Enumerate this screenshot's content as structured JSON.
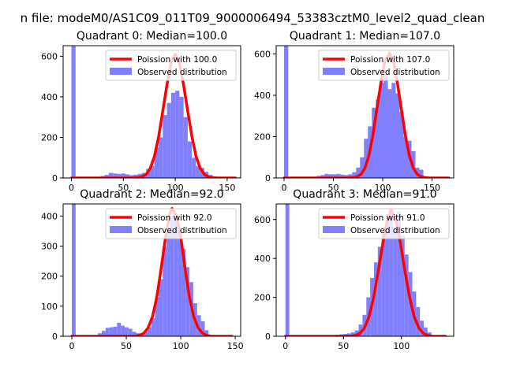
{
  "suptitle": "n file: modeM0/AS1C09_011T09_9000006494_53383cztM0_level2_quad_clean",
  "colors": {
    "hist": "#8080ff",
    "curve": "#ff0000",
    "axes": "#000000"
  },
  "chart_data": [
    {
      "type": "bar",
      "title": "Quadrant 0: Median=100.0",
      "median": 100.0,
      "xlim": [
        -8,
        163
      ],
      "ylim": [
        0,
        652
      ],
      "xticks": [
        0,
        50,
        100,
        150
      ],
      "yticks": [
        0,
        200,
        400,
        600
      ],
      "bin_width": 4,
      "hist_x": [
        0,
        24,
        28,
        32,
        36,
        40,
        44,
        48,
        52,
        56,
        60,
        64,
        68,
        72,
        76,
        80,
        84,
        88,
        92,
        96,
        100,
        104,
        108,
        112,
        116,
        120,
        124,
        128,
        132
      ],
      "hist_y": [
        652,
        6,
        10,
        15,
        25,
        22,
        20,
        22,
        18,
        14,
        16,
        20,
        25,
        45,
        60,
        150,
        200,
        310,
        370,
        420,
        430,
        400,
        300,
        180,
        100,
        60,
        50,
        30,
        15
      ],
      "curve_label": "Poission with 100.0",
      "curve_x": [
        0,
        60,
        64,
        68,
        72,
        76,
        80,
        84,
        88,
        92,
        96,
        100,
        104,
        108,
        112,
        116,
        120,
        124,
        128,
        132,
        136,
        140,
        150,
        158
      ],
      "curve_y": [
        0,
        0,
        2,
        6,
        18,
        48,
        108,
        205,
        330,
        460,
        565,
        610,
        565,
        460,
        330,
        205,
        108,
        48,
        18,
        6,
        2,
        0,
        0,
        0
      ],
      "legend": [
        "Poission with 100.0",
        "Observed distribution"
      ]
    },
    {
      "type": "bar",
      "title": "Quadrant 1: Median=107.0",
      "median": 107.0,
      "xlim": [
        -8,
        172
      ],
      "ylim": [
        0,
        640
      ],
      "xticks": [
        0,
        50,
        100,
        150
      ],
      "yticks": [
        0,
        200,
        400,
        600
      ],
      "bin_width": 4.2,
      "hist_x": [
        0,
        29,
        33,
        37,
        41,
        45,
        49,
        53,
        57,
        61,
        65,
        69,
        73,
        77,
        81,
        85,
        89,
        93,
        97,
        101,
        105,
        109,
        113,
        117,
        121,
        125,
        129,
        133,
        137
      ],
      "hist_y": [
        640,
        5,
        10,
        14,
        20,
        18,
        18,
        20,
        16,
        14,
        18,
        28,
        50,
        100,
        190,
        250,
        340,
        380,
        460,
        500,
        430,
        460,
        410,
        320,
        200,
        180,
        130,
        50,
        40
      ],
      "curve_label": "Poission with 107.0",
      "curve_x": [
        0,
        66,
        70,
        74,
        78,
        82,
        86,
        90,
        94,
        98,
        102,
        107,
        111,
        115,
        119,
        123,
        127,
        131,
        135,
        139,
        143,
        147,
        160,
        167
      ],
      "curve_y": [
        0,
        0,
        2,
        6,
        18,
        48,
        108,
        205,
        330,
        455,
        560,
        605,
        560,
        455,
        330,
        205,
        108,
        48,
        18,
        6,
        2,
        0,
        0,
        0
      ],
      "legend": [
        "Poission with 107.0",
        "Observed distribution"
      ]
    },
    {
      "type": "bar",
      "title": "Quadrant 2: Median=92.0",
      "median": 92.0,
      "xlim": [
        -8,
        155
      ],
      "ylim": [
        0,
        440
      ],
      "xticks": [
        0,
        50,
        100,
        150
      ],
      "yticks": [
        0,
        100,
        200,
        300,
        400
      ],
      "bin_width": 3.5,
      "hist_x": [
        0,
        24,
        27.5,
        31,
        34.5,
        38,
        41.5,
        45,
        48.5,
        52,
        55.5,
        59,
        62.5,
        66,
        69.5,
        73,
        76.5,
        80,
        83.5,
        87,
        90.5,
        94,
        97.5,
        101,
        104.5,
        108,
        111.5,
        115,
        118.5,
        122
      ],
      "hist_y": [
        440,
        10,
        18,
        28,
        30,
        32,
        45,
        35,
        30,
        25,
        15,
        10,
        10,
        15,
        30,
        60,
        130,
        190,
        300,
        360,
        400,
        390,
        350,
        290,
        230,
        180,
        110,
        70,
        50,
        20
      ],
      "curve_label": "Poission with 92.0",
      "curve_x": [
        0,
        58,
        62,
        66,
        70,
        74,
        78,
        82,
        86,
        90,
        92,
        96,
        100,
        104,
        108,
        112,
        116,
        120,
        124,
        128,
        132,
        140,
        147
      ],
      "curve_y": [
        0,
        0,
        3,
        10,
        28,
        65,
        130,
        225,
        330,
        410,
        425,
        400,
        330,
        225,
        130,
        65,
        28,
        10,
        3,
        0,
        0,
        0,
        0
      ],
      "legend": [
        "Poission with 92.0",
        "Observed distribution"
      ]
    },
    {
      "type": "bar",
      "title": "Quadrant 3: Median=91.0",
      "median": 91.0,
      "xlim": [
        -8,
        145
      ],
      "ylim": [
        0,
        680
      ],
      "xticks": [
        0,
        50,
        100
      ],
      "yticks": [
        0,
        200,
        400,
        600
      ],
      "bin_width": 3.3,
      "hist_x": [
        0,
        40,
        43.3,
        46.6,
        49.9,
        53.2,
        56.5,
        59.8,
        63.1,
        66.4,
        69.7,
        73,
        76.3,
        79.6,
        82.9,
        86.2,
        89.5,
        92.8,
        96.1,
        99.4,
        102.7,
        106,
        109.3,
        112.6,
        115.9,
        119.2,
        122.5
      ],
      "hist_y": [
        680,
        5,
        8,
        10,
        12,
        15,
        20,
        30,
        60,
        110,
        200,
        300,
        380,
        460,
        540,
        600,
        650,
        560,
        640,
        520,
        420,
        330,
        230,
        150,
        80,
        45,
        20
      ],
      "curve_label": "Poission with 91.0",
      "curve_x": [
        0,
        56,
        60,
        64,
        68,
        72,
        76,
        80,
        84,
        88,
        91,
        95,
        99,
        103,
        107,
        111,
        115,
        119,
        123,
        127,
        132,
        138
      ],
      "curve_y": [
        0,
        0,
        4,
        14,
        42,
        100,
        200,
        335,
        480,
        600,
        650,
        600,
        480,
        335,
        200,
        100,
        42,
        14,
        4,
        0,
        0,
        0
      ],
      "legend": [
        "Poission with 91.0",
        "Observed distribution"
      ]
    }
  ]
}
